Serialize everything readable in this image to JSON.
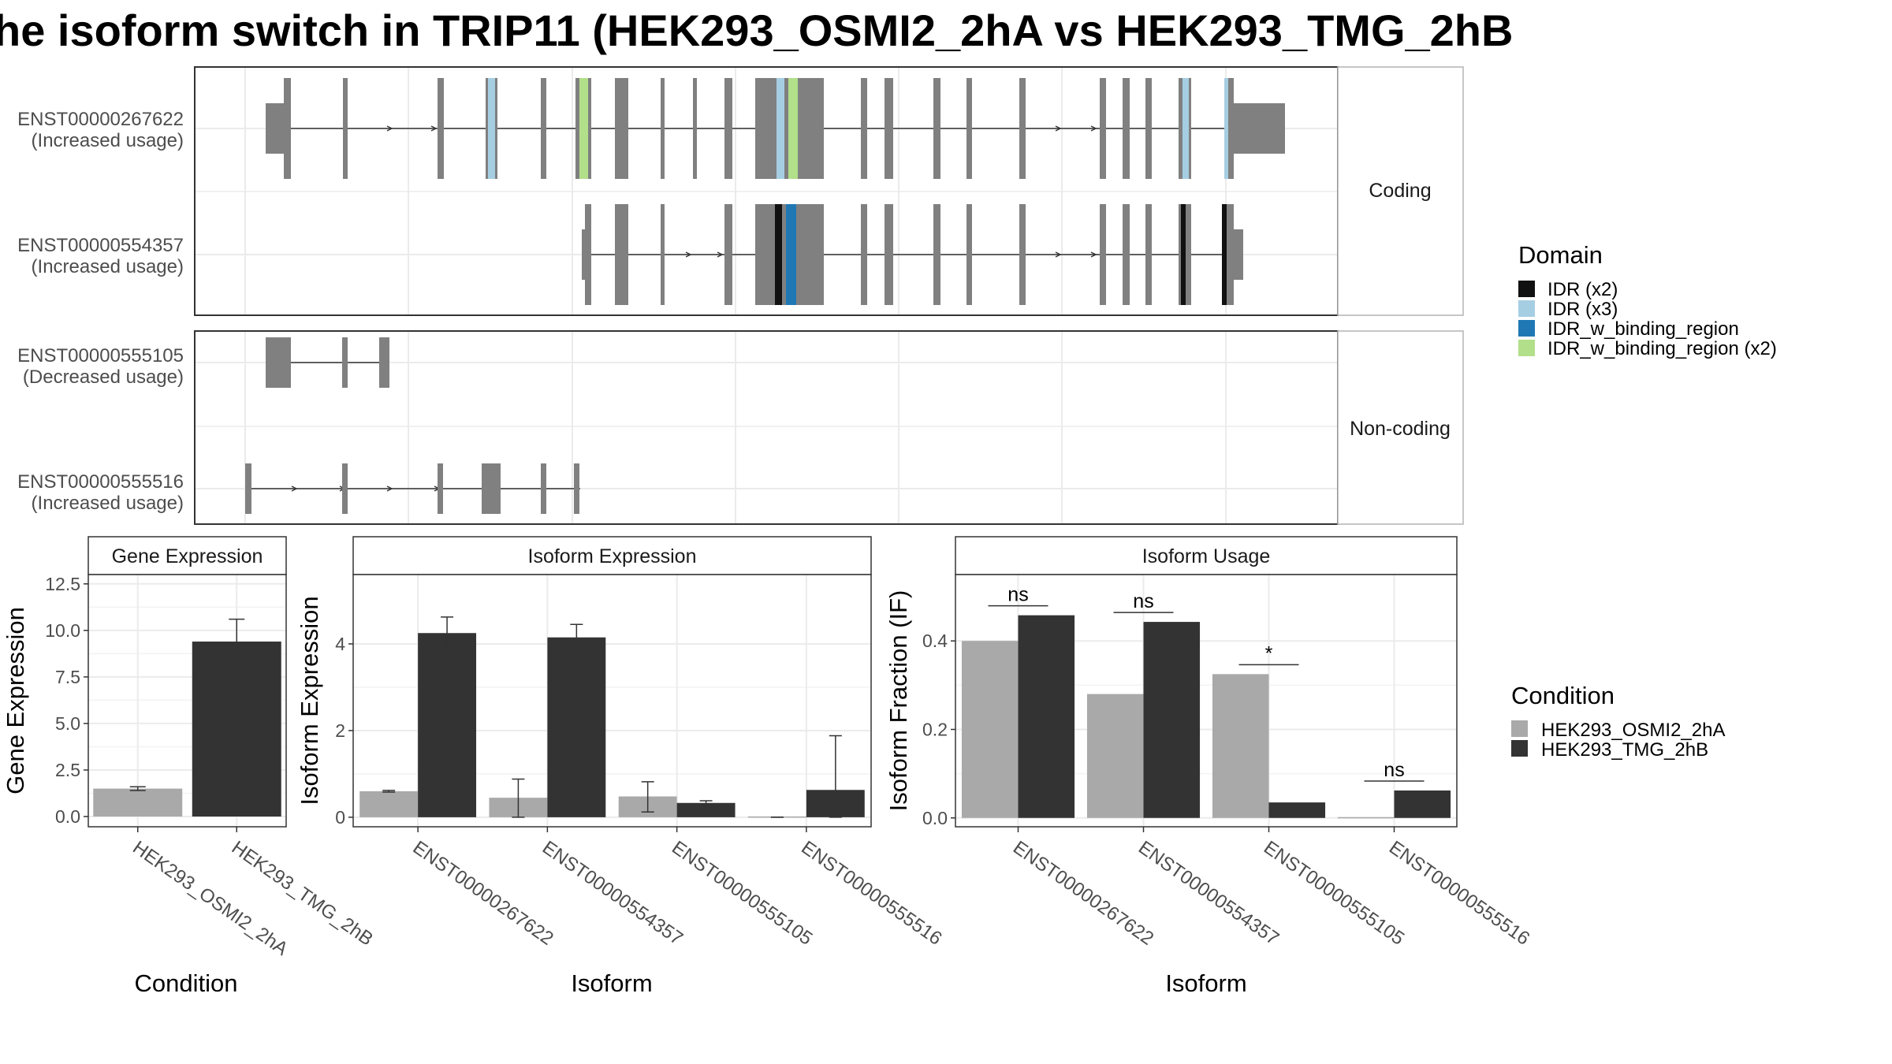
{
  "title": "he isoform switch in TRIP11 (HEK293_OSMI2_2hA vs HEK293_TMG_2hB",
  "colors": {
    "exon": "#808080",
    "idr_x2": "#111111",
    "idr_x3": "#a6cee3",
    "idr_w_binding_region": "#1f78b4",
    "idr_w_binding_region_x2": "#b2df8a",
    "cond_a": "#a9a9a9",
    "cond_b": "#333333",
    "grid": "#ebebeb",
    "strip_bg": "#ffffff"
  },
  "structure": {
    "facets": [
      "Coding",
      "Non-coding"
    ],
    "isoforms": [
      {
        "id": "ENST00000267622",
        "label": "(Increased usage)",
        "facet": "Coding"
      },
      {
        "id": "ENST00000554357",
        "label": "(Increased usage)",
        "facet": "Coding"
      },
      {
        "id": "ENST00000555105",
        "label": "(Decreased usage)",
        "facet": "Non-coding"
      },
      {
        "id": "ENST00000555516",
        "label": "(Increased usage)",
        "facet": "Non-coding"
      }
    ]
  },
  "legend_domain": {
    "title": "Domain",
    "items": [
      {
        "label": "IDR (x2)",
        "color": "#111111"
      },
      {
        "label": "IDR (x3)",
        "color": "#a6cee3"
      },
      {
        "label": "IDR_w_binding_region",
        "color": "#1f78b4"
      },
      {
        "label": "IDR_w_binding_region (x2)",
        "color": "#b2df8a"
      }
    ]
  },
  "legend_condition": {
    "title": "Condition",
    "items": [
      {
        "label": "HEK293_OSMI2_2hA",
        "color": "#a9a9a9"
      },
      {
        "label": "HEK293_TMG_2hB",
        "color": "#333333"
      }
    ]
  },
  "chart_data": [
    {
      "type": "bar",
      "panel": "Gene Expression",
      "xlabel": "Condition",
      "ylabel": "Gene Expression",
      "categories": [
        "HEK293_OSMI2_2hA",
        "HEK293_TMG_2hB"
      ],
      "values": [
        1.5,
        9.4
      ],
      "errors": [
        [
          1.4,
          1.6
        ],
        [
          8.2,
          10.6
        ]
      ],
      "yticks": [
        "0.0",
        "2.5",
        "5.0",
        "7.5",
        "10.0",
        "12.5"
      ],
      "ylim": [
        -0.55,
        13.0
      ],
      "grid": true
    },
    {
      "type": "bar",
      "panel": "Isoform Expression",
      "xlabel": "Isoform",
      "ylabel": "Isoform Expression",
      "categories": [
        "ENST00000267622",
        "ENST00000554357",
        "ENST00000555105",
        "ENST00000555516"
      ],
      "series": [
        {
          "name": "HEK293_OSMI2_2hA",
          "values": [
            0.6,
            0.45,
            0.48,
            0.0
          ],
          "errors": [
            [
              0.58,
              0.62
            ],
            [
              0.0,
              0.88
            ],
            [
              0.12,
              0.82
            ],
            [
              0.0,
              0.0
            ]
          ]
        },
        {
          "name": "HEK293_TMG_2hB",
          "values": [
            4.25,
            4.15,
            0.33,
            0.63
          ],
          "errors": [
            [
              3.9,
              4.62
            ],
            [
              3.85,
              4.45
            ],
            [
              0.28,
              0.38
            ],
            [
              0.0,
              1.88
            ]
          ]
        }
      ],
      "yticks": [
        "0",
        "2",
        "4"
      ],
      "ylim": [
        -0.22,
        5.6
      ],
      "grid": true
    },
    {
      "type": "bar",
      "panel": "Isoform Usage",
      "xlabel": "Isoform",
      "ylabel": "Isoform Fraction (IF)",
      "categories": [
        "ENST00000267622",
        "ENST00000554357",
        "ENST00000555105",
        "ENST00000555516"
      ],
      "series": [
        {
          "name": "HEK293_OSMI2_2hA",
          "values": [
            0.4,
            0.28,
            0.325,
            0.0
          ]
        },
        {
          "name": "HEK293_TMG_2hB",
          "values": [
            0.458,
            0.443,
            0.035,
            0.062
          ]
        }
      ],
      "significance": [
        "ns",
        "ns",
        "*",
        "ns"
      ],
      "yticks": [
        "0.0",
        "0.2",
        "0.4"
      ],
      "ylim": [
        -0.02,
        0.55
      ],
      "grid": true
    }
  ]
}
